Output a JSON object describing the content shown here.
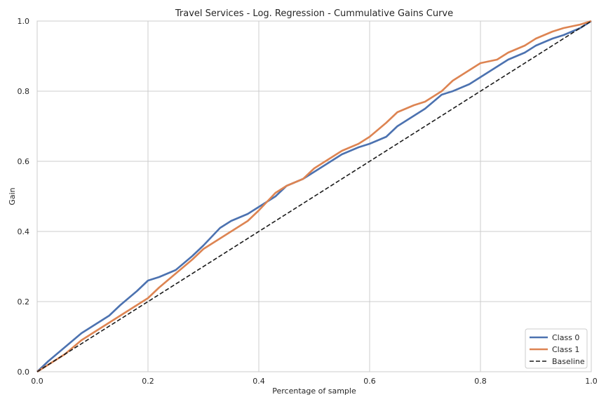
{
  "chart_data": {
    "type": "line",
    "title": "Travel Services - Log. Regression -  Cummulative Gains Curve",
    "xlabel": "Percentage of sample",
    "ylabel": "Gain",
    "xlim": [
      0.0,
      1.0
    ],
    "ylim": [
      0.0,
      1.0
    ],
    "x_ticks": [
      "0.0",
      "0.2",
      "0.4",
      "0.6",
      "0.8",
      "1.0"
    ],
    "y_ticks": [
      "0.0",
      "0.2",
      "0.4",
      "0.6",
      "0.8",
      "1.0"
    ],
    "grid": true,
    "legend_position": "bottom-right",
    "series": [
      {
        "name": "Class 0",
        "color": "#4c72b0",
        "style": "solid",
        "x": [
          0.0,
          0.02,
          0.05,
          0.08,
          0.1,
          0.13,
          0.15,
          0.18,
          0.2,
          0.22,
          0.25,
          0.28,
          0.3,
          0.33,
          0.35,
          0.38,
          0.4,
          0.43,
          0.45,
          0.48,
          0.5,
          0.53,
          0.55,
          0.58,
          0.6,
          0.63,
          0.65,
          0.68,
          0.7,
          0.73,
          0.75,
          0.78,
          0.8,
          0.83,
          0.85,
          0.88,
          0.9,
          0.93,
          0.95,
          0.98,
          1.0
        ],
        "y": [
          0.0,
          0.03,
          0.07,
          0.11,
          0.13,
          0.16,
          0.19,
          0.23,
          0.26,
          0.27,
          0.29,
          0.33,
          0.36,
          0.41,
          0.43,
          0.45,
          0.47,
          0.5,
          0.53,
          0.55,
          0.57,
          0.6,
          0.62,
          0.64,
          0.65,
          0.67,
          0.7,
          0.73,
          0.75,
          0.79,
          0.8,
          0.82,
          0.84,
          0.87,
          0.89,
          0.91,
          0.93,
          0.95,
          0.96,
          0.98,
          1.0
        ]
      },
      {
        "name": "Class 1",
        "color": "#dd8452",
        "style": "solid",
        "x": [
          0.0,
          0.02,
          0.05,
          0.08,
          0.1,
          0.13,
          0.15,
          0.18,
          0.2,
          0.22,
          0.25,
          0.28,
          0.3,
          0.33,
          0.35,
          0.38,
          0.4,
          0.43,
          0.45,
          0.48,
          0.5,
          0.53,
          0.55,
          0.58,
          0.6,
          0.63,
          0.65,
          0.68,
          0.7,
          0.73,
          0.75,
          0.78,
          0.8,
          0.83,
          0.85,
          0.88,
          0.9,
          0.93,
          0.95,
          0.98,
          1.0
        ],
        "y": [
          0.0,
          0.02,
          0.05,
          0.09,
          0.11,
          0.14,
          0.16,
          0.19,
          0.21,
          0.24,
          0.28,
          0.32,
          0.35,
          0.38,
          0.4,
          0.43,
          0.46,
          0.51,
          0.53,
          0.55,
          0.58,
          0.61,
          0.63,
          0.65,
          0.67,
          0.71,
          0.74,
          0.76,
          0.77,
          0.8,
          0.83,
          0.86,
          0.88,
          0.89,
          0.91,
          0.93,
          0.95,
          0.97,
          0.98,
          0.99,
          1.0
        ]
      },
      {
        "name": "Baseline",
        "color": "#1a1a1a",
        "style": "dashed",
        "x": [
          0.0,
          1.0
        ],
        "y": [
          0.0,
          1.0
        ]
      }
    ]
  }
}
